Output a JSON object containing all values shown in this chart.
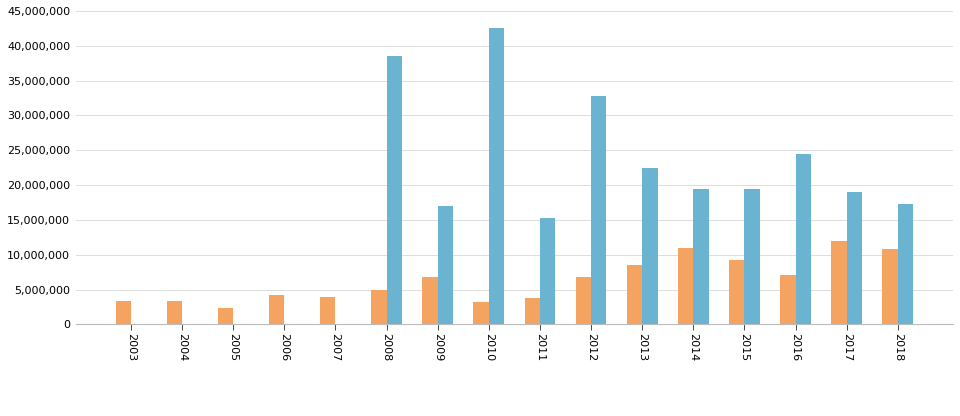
{
  "years": [
    2003,
    2004,
    2005,
    2006,
    2007,
    2008,
    2009,
    2010,
    2011,
    2012,
    2013,
    2014,
    2015,
    2016,
    2017,
    2018
  ],
  "conflict": [
    3300000,
    3300000,
    2400000,
    4300000,
    4000000,
    4900000,
    6800000,
    3200000,
    3800000,
    6800000,
    8500000,
    11000000,
    9300000,
    7100000,
    12000000,
    10800000
  ],
  "disasters": [
    0,
    0,
    0,
    0,
    0,
    38500000,
    17000000,
    42500000,
    15300000,
    32800000,
    22500000,
    19400000,
    19500000,
    24500000,
    19000000,
    17300000
  ],
  "conflict_color": "#f4a460",
  "disaster_color": "#6ab4d2",
  "background_color": "#ffffff",
  "ylim": [
    0,
    45000000
  ],
  "yticks": [
    0,
    5000000,
    10000000,
    15000000,
    20000000,
    25000000,
    30000000,
    35000000,
    40000000,
    45000000
  ],
  "grid_color": "#dddddd"
}
